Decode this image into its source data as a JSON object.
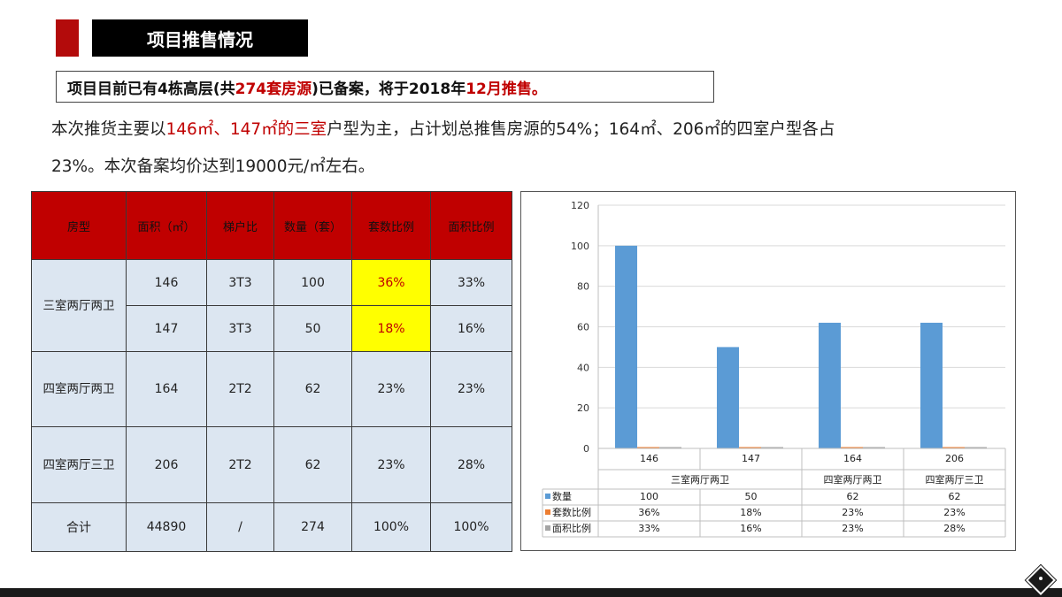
{
  "header": {
    "title": "项目推售情况"
  },
  "subtitle": {
    "part1": "项目目前已有4栋高层(共",
    "part2": "274套房源",
    "part3": ")已备案，将于2018年",
    "part4": "12月推售。"
  },
  "paragraph": {
    "line1_a": "本次推货主要以",
    "line1_b": "146㎡、147㎡的三室",
    "line1_c": "户型为主，占计划总推售房源的54%；164㎡、206㎡的四室户型各占",
    "line2": "23%。本次备案均价达到19000元/㎡左右。"
  },
  "table": {
    "headers": [
      "房型",
      "面积（㎡）",
      "梯户比",
      "数量（套）",
      "套数比例",
      "面积比例"
    ],
    "groups": [
      "三室两厅两卫",
      "四室两厅两卫",
      "四室两厅三卫"
    ],
    "rows": [
      [
        "146",
        "3T3",
        "100",
        "36%",
        "33%"
      ],
      [
        "147",
        "3T3",
        "50",
        "18%",
        "16%"
      ],
      [
        "164",
        "2T2",
        "62",
        "23%",
        "23%"
      ],
      [
        "206",
        "2T2",
        "62",
        "23%",
        "28%"
      ]
    ],
    "total": [
      "合计",
      "44890",
      "/",
      "274",
      "100%",
      "100%"
    ]
  },
  "chart_data": {
    "type": "bar",
    "categories": [
      "146",
      "147",
      "164",
      "206"
    ],
    "groups": [
      {
        "label": "三室两厅两卫",
        "span": 2
      },
      {
        "label": "四室两厅两卫",
        "span": 1
      },
      {
        "label": "四室两厅三卫",
        "span": 1
      }
    ],
    "series": [
      {
        "name": "数量",
        "values": [
          100,
          50,
          62,
          62
        ],
        "labels": [
          "100",
          "50",
          "62",
          "62"
        ],
        "color": "#5b9bd5"
      },
      {
        "name": "套数比例",
        "values": [
          0.36,
          0.18,
          0.23,
          0.23
        ],
        "labels": [
          "36%",
          "18%",
          "23%",
          "23%"
        ],
        "color": "#ed7d31"
      },
      {
        "name": "面积比例",
        "values": [
          0.33,
          0.16,
          0.23,
          0.28
        ],
        "labels": [
          "33%",
          "16%",
          "23%",
          "28%"
        ],
        "color": "#a5a5a5"
      }
    ],
    "yticks": [
      "0",
      "20",
      "40",
      "60",
      "80",
      "100",
      "120"
    ],
    "ylim": [
      0,
      120
    ],
    "grid": true,
    "legend": "data-table"
  }
}
